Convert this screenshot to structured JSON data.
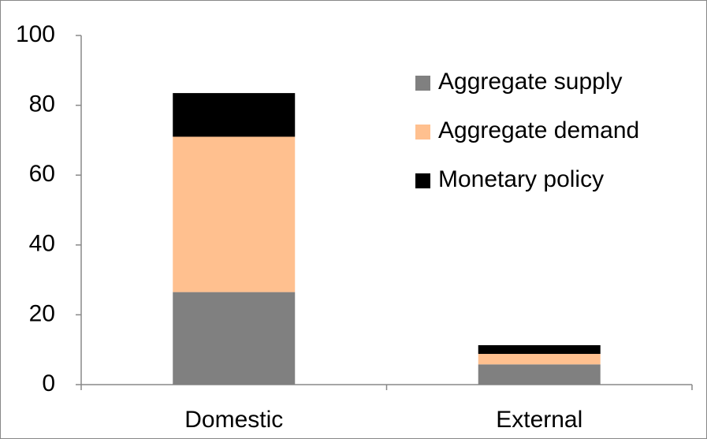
{
  "chart_data": {
    "type": "stacked_bar",
    "categories": [
      "Domestic",
      "External"
    ],
    "series": [
      {
        "name": "Aggregate supply",
        "color": "#808080",
        "values": [
          26.5,
          5.8
        ]
      },
      {
        "name": "Aggregate demand",
        "color": "#FFC08F",
        "values": [
          44.5,
          3
        ]
      },
      {
        "name": "Monetary policy",
        "color": "#000000",
        "values": [
          12.5,
          2.5
        ]
      }
    ],
    "ylim": [
      0,
      100
    ],
    "yticks": [
      0,
      20,
      40,
      60,
      80,
      100
    ],
    "grid": false,
    "legend": "upper right"
  }
}
